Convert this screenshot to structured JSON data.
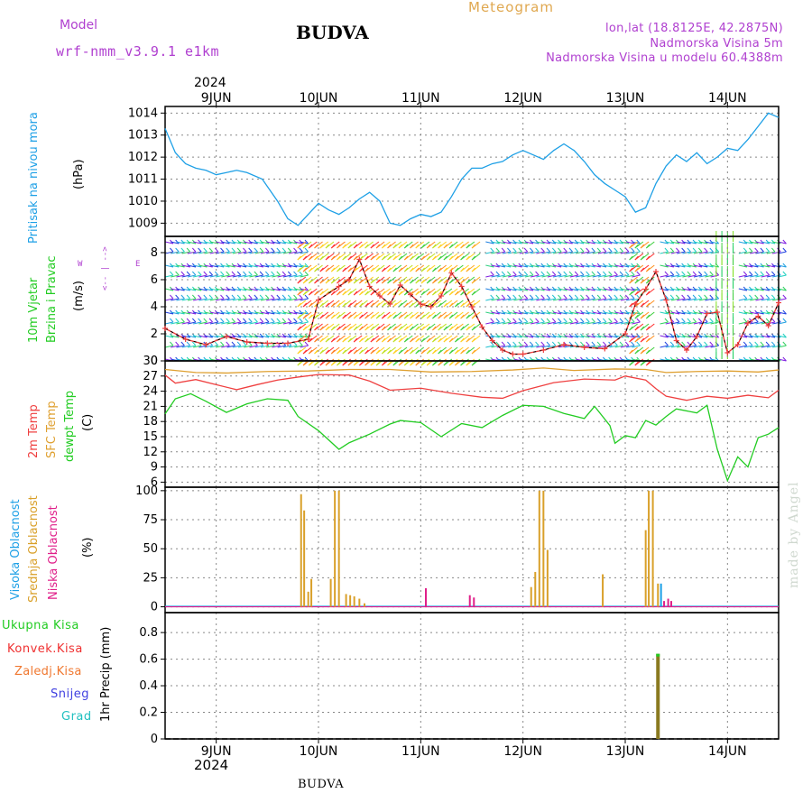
{
  "header": {
    "model_label": "Model",
    "model_name": "wrf-nmm_v3.9.1 e1km",
    "title": "BUDVA",
    "meteogram_label": "Meteogram",
    "lonlat": "lon,lat (18.8125E, 42.2875N)",
    "altitude": "Nadmorska Visina 5m",
    "model_altitude": "Nadmorska Visina u modelu 60.4388m",
    "footer_title": "BUDVA",
    "watermark": "made by Angel"
  },
  "colors": {
    "purple": "#b040d0",
    "orange": "#e0a850",
    "pressure": "#1ea0e6",
    "temp2m": "#ef4040",
    "sfc": "#dfa030",
    "dewpt": "#22cc22",
    "cloud_high": "#1ea0e6",
    "cloud_mid": "#d9a02a",
    "cloud_low": "#e0208a",
    "precip_total": "#22cc22",
    "precip_conv": "#ef3030",
    "precip_grid": "#f07830",
    "snow": "#4040e0",
    "graupel": "#20c0c0"
  },
  "time_axis": {
    "year": "2024",
    "days": [
      "9JUN",
      "10JUN",
      "11JUN",
      "12JUN",
      "13JUN",
      "14JUN"
    ]
  },
  "chart_data": [
    {
      "type": "line",
      "panel": "pressure",
      "ylabel": "Pritisak na nivou mora",
      "unit": "(hPa)",
      "ylim": [
        1008.4,
        1014.3
      ],
      "yticks": [
        1009,
        1010,
        1011,
        1012,
        1013,
        1014
      ],
      "grid": true,
      "series": [
        {
          "name": "Pritisak na nivou mora",
          "x": [
            8.5,
            8.6,
            8.7,
            8.8,
            8.9,
            9.0,
            9.1,
            9.2,
            9.3,
            9.45,
            9.6,
            9.7,
            9.8,
            9.9,
            10.0,
            10.1,
            10.2,
            10.3,
            10.4,
            10.5,
            10.6,
            10.7,
            10.8,
            10.9,
            11.0,
            11.1,
            11.2,
            11.3,
            11.4,
            11.5,
            11.6,
            11.7,
            11.8,
            11.9,
            12.0,
            12.1,
            12.2,
            12.3,
            12.4,
            12.5,
            12.6,
            12.7,
            12.8,
            12.9,
            13.0,
            13.1,
            13.2,
            13.3,
            13.4,
            13.5,
            13.6,
            13.7,
            13.8,
            13.9,
            14.0,
            14.1,
            14.2,
            14.3,
            14.4,
            14.5
          ],
          "y": [
            1013.3,
            1012.2,
            1011.7,
            1011.5,
            1011.4,
            1011.2,
            1011.3,
            1011.4,
            1011.3,
            1011.0,
            1010.0,
            1009.2,
            1008.9,
            1009.4,
            1009.9,
            1009.6,
            1009.4,
            1009.7,
            1010.1,
            1010.4,
            1010.0,
            1009.0,
            1008.9,
            1009.2,
            1009.4,
            1009.3,
            1009.5,
            1010.2,
            1011.0,
            1011.5,
            1011.5,
            1011.7,
            1011.8,
            1012.1,
            1012.3,
            1012.1,
            1011.9,
            1012.3,
            1012.6,
            1012.3,
            1011.8,
            1011.2,
            1010.8,
            1010.5,
            1010.2,
            1009.5,
            1009.7,
            1010.8,
            1011.6,
            1012.1,
            1011.8,
            1012.2,
            1011.7,
            1012.0,
            1012.4,
            1012.3,
            1012.8,
            1013.4,
            1014.0,
            1013.8
          ]
        }
      ]
    },
    {
      "type": "line",
      "panel": "wind",
      "ylabel": "10m Vjetar Brzina i Pravac",
      "unit": "(m/s)",
      "compass": "N, <- | ->, W E, S",
      "ylim": [
        0,
        9.2
      ],
      "yticks": [
        0,
        2,
        4,
        6,
        8
      ],
      "grid": true,
      "series": [
        {
          "name": "10m Vjetar",
          "x": [
            8.5,
            8.7,
            8.9,
            9.1,
            9.3,
            9.5,
            9.7,
            9.9,
            10.0,
            10.2,
            10.3,
            10.4,
            10.5,
            10.6,
            10.7,
            10.8,
            10.9,
            11.0,
            11.1,
            11.2,
            11.3,
            11.4,
            11.5,
            11.6,
            11.7,
            11.8,
            11.9,
            12.0,
            12.2,
            12.4,
            12.6,
            12.8,
            13.0,
            13.1,
            13.2,
            13.3,
            13.4,
            13.5,
            13.6,
            13.7,
            13.8,
            13.9,
            14.0,
            14.1,
            14.2,
            14.3,
            14.4,
            14.5
          ],
          "y": [
            2.4,
            1.6,
            1.2,
            1.8,
            1.4,
            1.3,
            1.3,
            1.6,
            4.5,
            5.5,
            6.0,
            7.5,
            5.5,
            4.8,
            4.2,
            5.6,
            4.9,
            4.2,
            4.0,
            4.8,
            6.5,
            5.5,
            4.0,
            2.5,
            1.5,
            0.8,
            0.5,
            0.5,
            0.8,
            1.2,
            1.0,
            0.9,
            2.0,
            4.2,
            5.3,
            6.6,
            4.5,
            1.5,
            0.8,
            1.8,
            3.5,
            3.6,
            0.6,
            1.2,
            2.8,
            3.3,
            2.6,
            4.3
          ]
        }
      ]
    },
    {
      "type": "line",
      "panel": "temperature",
      "ylabels": [
        "2m Temp",
        "SFC Temp",
        "dewpt Temp"
      ],
      "unit": "(C)",
      "ylim": [
        5,
        30
      ],
      "yticks": [
        6,
        9,
        12,
        15,
        18,
        21,
        24,
        27,
        30
      ],
      "grid": true,
      "series": [
        {
          "name": "2m Temp",
          "x": [
            8.5,
            8.6,
            8.8,
            9.0,
            9.2,
            9.4,
            9.6,
            9.8,
            10.0,
            10.3,
            10.5,
            10.7,
            11.0,
            11.3,
            11.6,
            11.8,
            12.0,
            12.3,
            12.6,
            12.9,
            13.0,
            13.2,
            13.3,
            13.4,
            13.6,
            13.8,
            14.0,
            14.2,
            14.4,
            14.5
          ],
          "y": [
            27.2,
            25.6,
            26.3,
            25.3,
            24.3,
            25.3,
            26.2,
            26.8,
            27.3,
            27.2,
            26.0,
            24.2,
            24.6,
            23.6,
            22.8,
            22.6,
            24.1,
            25.7,
            26.4,
            26.2,
            27.0,
            26.2,
            24.5,
            23.0,
            22.2,
            23.0,
            22.6,
            23.2,
            22.7,
            24.2
          ]
        },
        {
          "name": "SFC Temp",
          "x": [
            8.5,
            8.8,
            9.1,
            9.5,
            9.9,
            10.3,
            10.7,
            11.1,
            11.5,
            11.9,
            12.2,
            12.5,
            12.9,
            13.2,
            13.4,
            13.7,
            14.0,
            14.3,
            14.5
          ],
          "y": [
            28.3,
            27.7,
            27.6,
            27.9,
            28.0,
            28.3,
            28.3,
            27.8,
            27.9,
            28.2,
            28.6,
            28.1,
            28.4,
            28.3,
            27.7,
            27.9,
            28.0,
            27.8,
            28.2
          ]
        },
        {
          "name": "dewpt Temp",
          "x": [
            8.5,
            8.6,
            8.75,
            8.9,
            9.1,
            9.3,
            9.5,
            9.7,
            9.8,
            10.0,
            10.2,
            10.3,
            10.5,
            10.7,
            10.8,
            11.0,
            11.2,
            11.4,
            11.6,
            11.8,
            12.0,
            12.2,
            12.4,
            12.6,
            12.7,
            12.85,
            12.9,
            13.0,
            13.1,
            13.2,
            13.3,
            13.4,
            13.5,
            13.7,
            13.8,
            13.9,
            14.0,
            14.1,
            14.2,
            14.3,
            14.4,
            14.5
          ],
          "y": [
            19.5,
            22.5,
            23.5,
            22.0,
            19.8,
            21.5,
            22.5,
            22.2,
            19.0,
            16.2,
            12.5,
            13.8,
            15.5,
            17.5,
            18.2,
            17.8,
            15.0,
            17.6,
            16.8,
            19.2,
            21.2,
            21.0,
            19.6,
            18.6,
            21.0,
            17.2,
            13.7,
            15.2,
            14.8,
            18.2,
            17.3,
            19.0,
            20.5,
            19.7,
            21.2,
            12.5,
            6.3,
            11.0,
            9.0,
            14.8,
            15.5,
            16.8
          ]
        }
      ]
    },
    {
      "type": "bar",
      "panel": "cloud",
      "ylabels": [
        "Visoka Oblacnost",
        "Srednja Oblacnost",
        "Niska Oblacnost"
      ],
      "unit": "(%)",
      "ylim": [
        -5,
        103
      ],
      "yticks": [
        0,
        25,
        50,
        75,
        100
      ],
      "grid": true,
      "series": [
        {
          "name": "Srednja Oblacnost",
          "x": [
            9.83,
            9.86,
            9.9,
            9.93,
            10.12,
            10.16,
            10.2,
            10.27,
            10.31,
            10.35,
            10.4,
            10.45,
            12.08,
            12.12,
            12.16,
            12.2,
            12.24,
            12.78,
            13.2,
            13.23,
            13.27,
            13.32
          ],
          "values": [
            97,
            83,
            13,
            24,
            24,
            100,
            100,
            11,
            10,
            9,
            7,
            3,
            17,
            30,
            100,
            100,
            49,
            28,
            66,
            100,
            100,
            20
          ]
        },
        {
          "name": "Niska Oblacnost",
          "x": [
            11.05,
            11.48,
            11.52,
            13.38,
            13.42,
            13.45
          ],
          "values": [
            16,
            10,
            8,
            5,
            7,
            5
          ]
        },
        {
          "name": "Visoka Oblacnost",
          "x": [
            13.35
          ],
          "values": [
            20
          ]
        }
      ]
    },
    {
      "type": "bar",
      "panel": "precipitation",
      "ylabels": [
        "Ukupna Kisa",
        "Konvek.Kisa",
        "Zaledj.Kisa",
        "Snijeg",
        "Grad"
      ],
      "unit": "1hr Precip (mm)",
      "ylim": [
        0,
        0.95
      ],
      "yticks": [
        0,
        0.2,
        0.4,
        0.6,
        0.8
      ],
      "grid": true,
      "series": [
        {
          "name": "Ukupna Kisa",
          "x": [
            13.32
          ],
          "values": [
            0.64
          ]
        }
      ]
    }
  ]
}
